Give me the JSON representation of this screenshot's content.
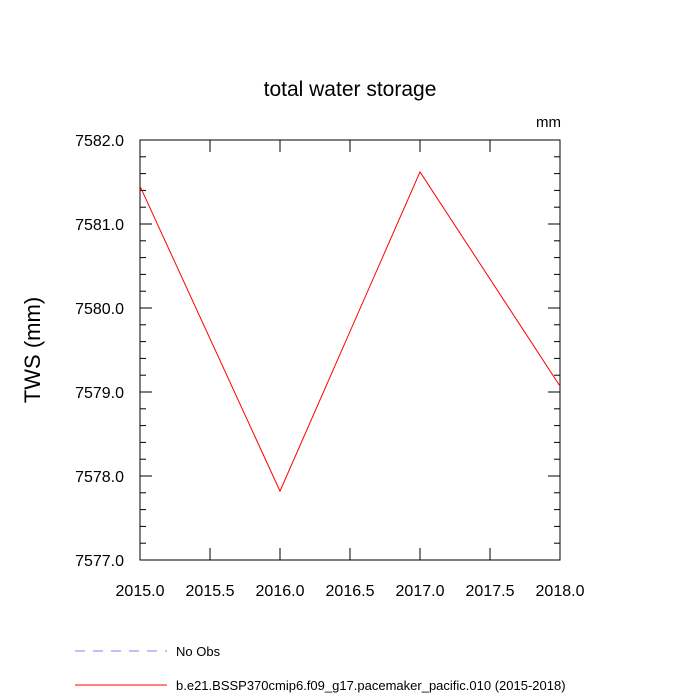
{
  "chart_data": {
    "type": "line",
    "title": "total water storage",
    "units_label": "mm",
    "xlabel": "",
    "ylabel": "TWS  (mm)",
    "xlim": [
      2015.0,
      2018.0
    ],
    "ylim": [
      7577.0,
      7582.0
    ],
    "x_ticks": [
      2015.0,
      2015.5,
      2016.0,
      2016.5,
      2017.0,
      2017.5,
      2018.0
    ],
    "x_tick_labels": [
      "2015.0",
      "2015.5",
      "2016.0",
      "2016.5",
      "2017.0",
      "2017.5",
      "2018.0"
    ],
    "y_ticks": [
      7577.0,
      7578.0,
      7579.0,
      7580.0,
      7581.0,
      7582.0
    ],
    "y_tick_labels": [
      "7577.0",
      "7578.0",
      "7579.0",
      "7580.0",
      "7581.0",
      "7582.0"
    ],
    "grid": false,
    "legend_position": "bottom",
    "series": [
      {
        "name": "b.e21.BSSP370cmip6.f09_g17.pacemaker_pacific.010 (2015-2018)",
        "color": "#ff0000",
        "dash": "solid",
        "x": [
          2015.0,
          2016.0,
          2017.0,
          2018.0
        ],
        "y": [
          7581.45,
          7577.82,
          7581.62,
          7579.07
        ]
      }
    ],
    "legend": [
      {
        "label": "No Obs",
        "color": "#8080ff",
        "dash": "dashed"
      },
      {
        "label": "b.e21.BSSP370cmip6.f09_g17.pacemaker_pacific.010 (2015-2018)",
        "color": "#ff0000",
        "dash": "solid"
      }
    ]
  }
}
